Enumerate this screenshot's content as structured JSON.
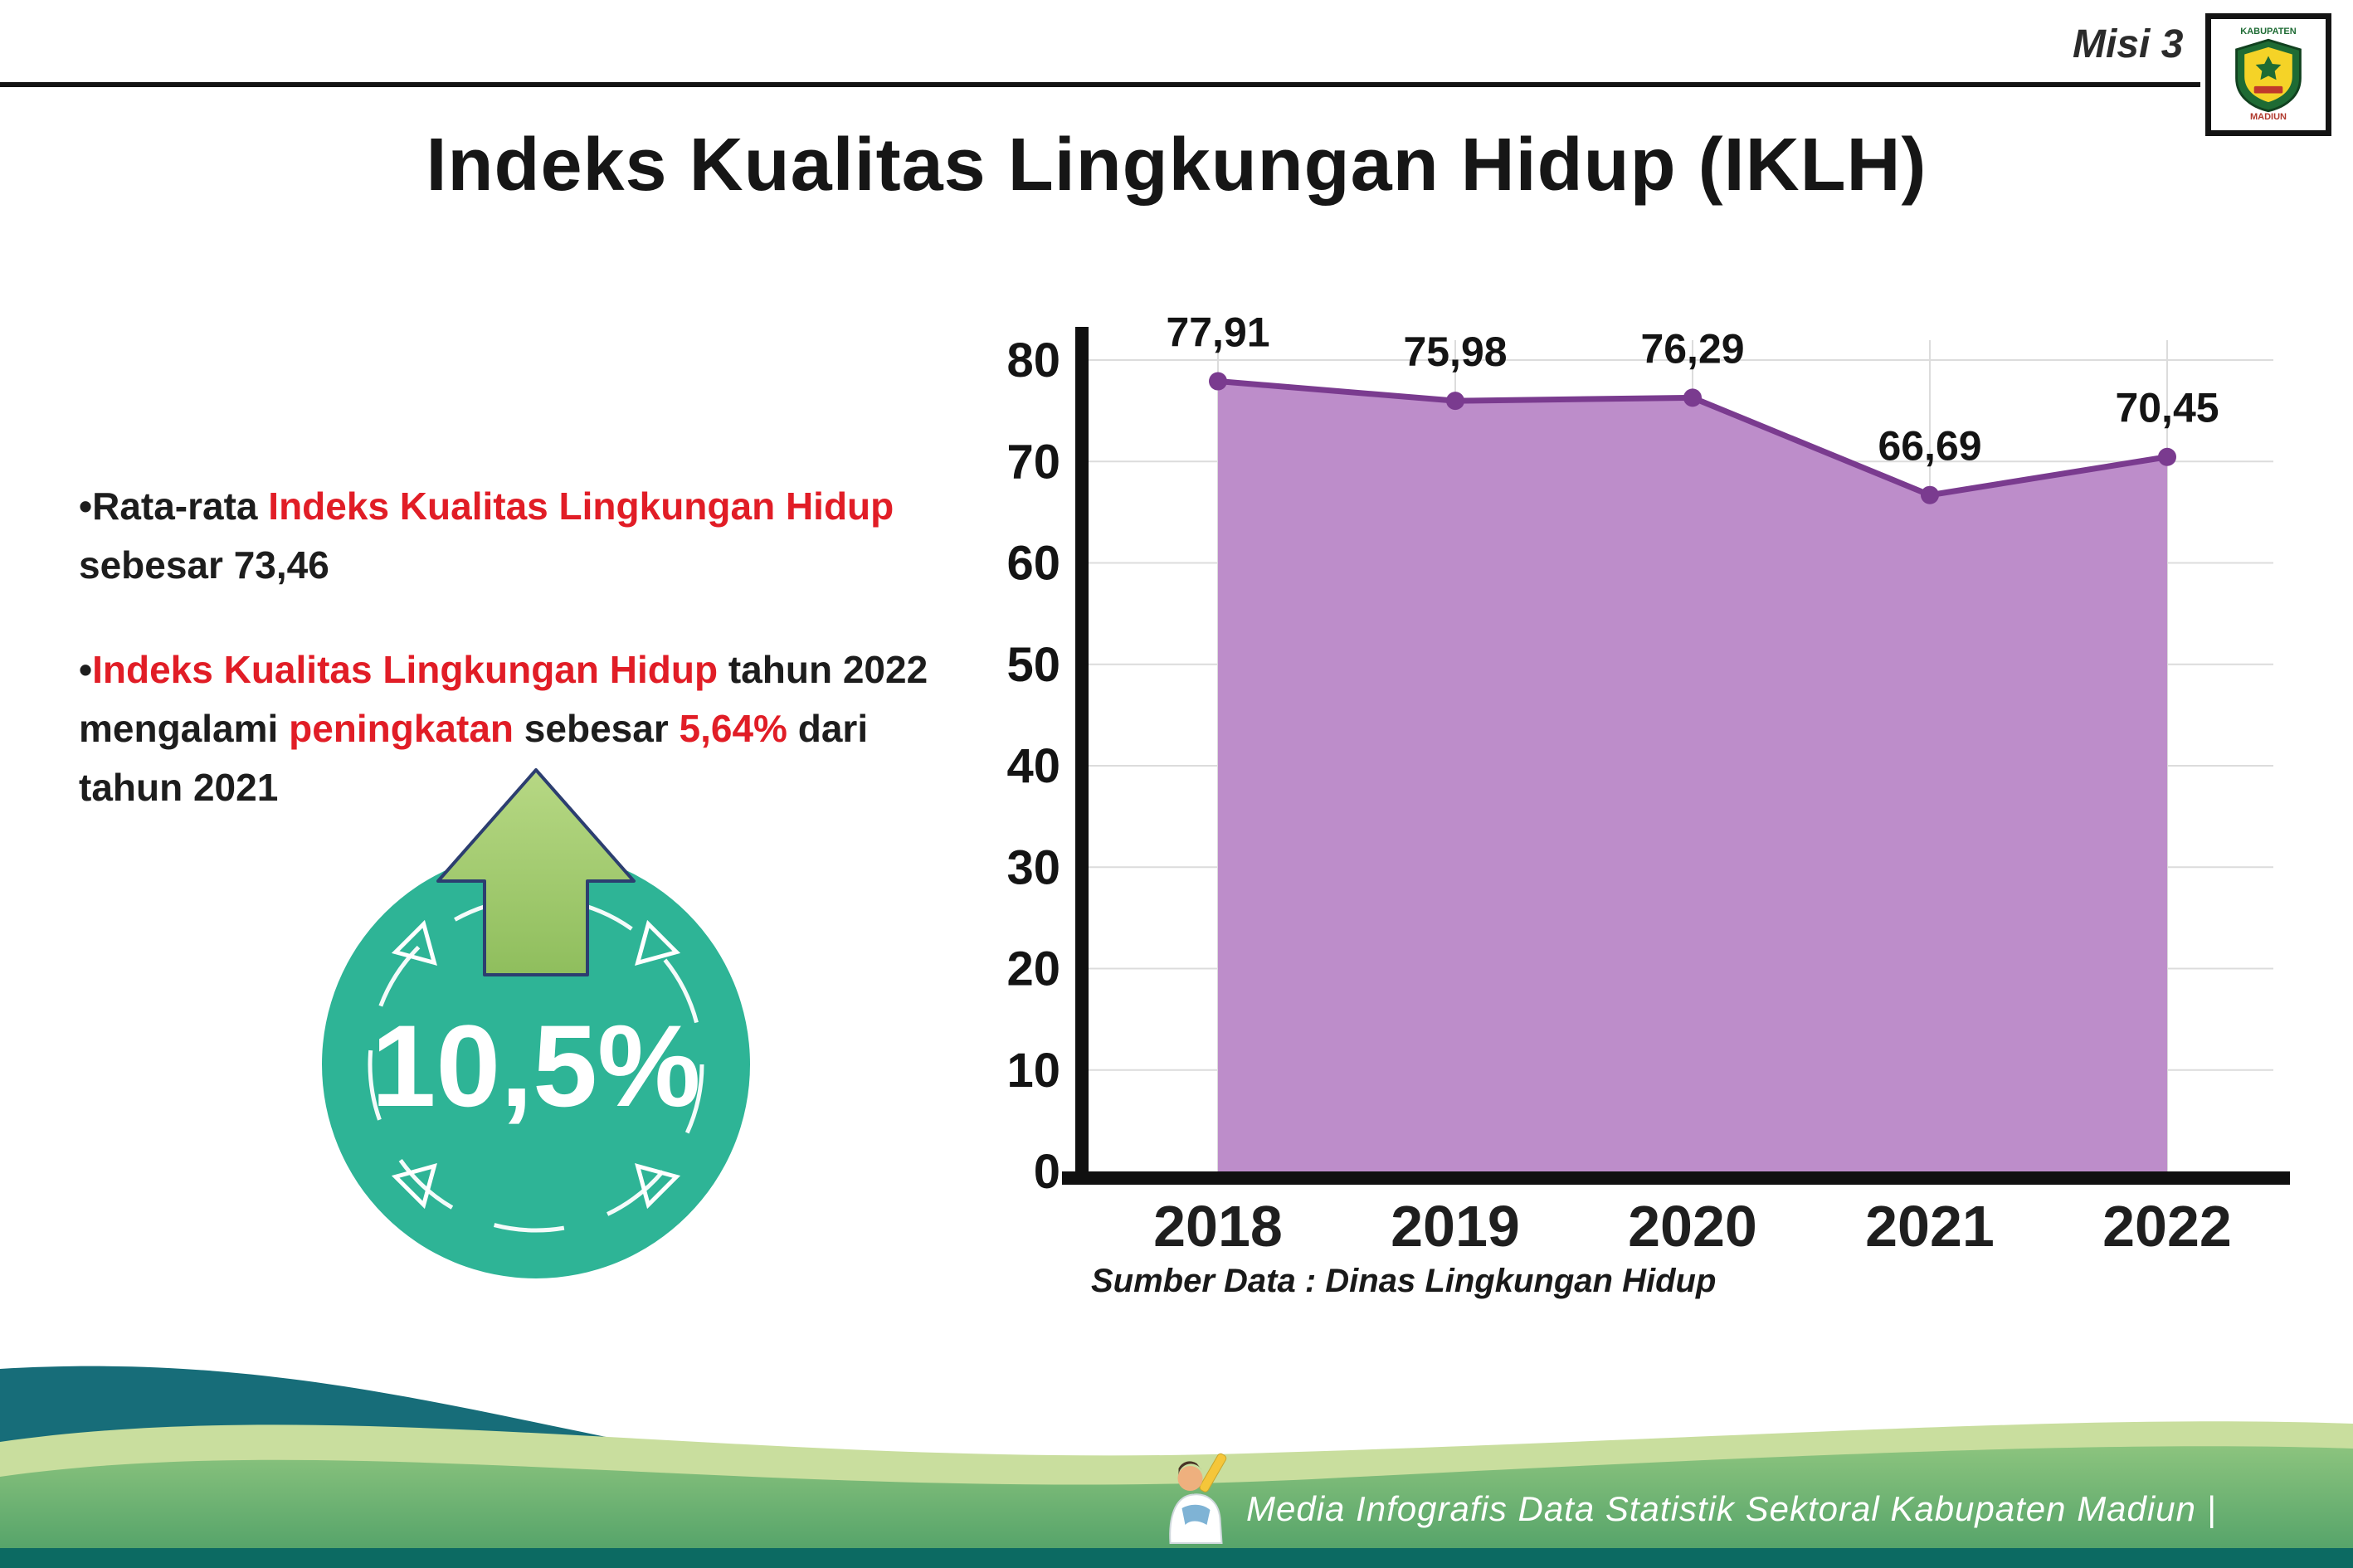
{
  "header": {
    "misi_label": "Misi 3",
    "title": "Indeks Kualitas Lingkungan Hidup (IKLH)"
  },
  "logo": {
    "top_text": "KABUPATEN",
    "bottom_text": "MADIUN"
  },
  "bullets": {
    "b1_pre": "•Rata-rata ",
    "b1_red": "Indeks Kualitas Lingkungan Hidup",
    "b1_post": " sebesar 73,46",
    "b2_bullet": "•",
    "b2_red1": "Indeks Kualitas Lingkungan Hidup",
    "b2_mid1": " tahun 2022 mengalami ",
    "b2_red2": "peningkatan",
    "b2_mid2": " sebesar ",
    "b2_red3": "5,64%",
    "b2_post": " dari tahun 2021"
  },
  "badge": {
    "value": "10,5%",
    "circle_color": "#2eb496",
    "arrow_color": "#a6ce6e",
    "arrow_outline": "#2c3e70"
  },
  "chart_data": {
    "type": "area",
    "categories": [
      "2018",
      "2019",
      "2020",
      "2021",
      "2022"
    ],
    "values": [
      77.91,
      75.98,
      76.29,
      66.69,
      70.45
    ],
    "value_labels": [
      "77,91",
      "75,98",
      "76,29",
      "66,69",
      "70,45"
    ],
    "ylim": [
      0,
      80
    ],
    "yticks": [
      0,
      10,
      20,
      30,
      40,
      50,
      60,
      70,
      80
    ],
    "grid": true,
    "legend": "none",
    "area_color": "#bd8dca",
    "line_color": "#7a3b8f",
    "source": "Sumber Data : Dinas Lingkungan Hidup"
  },
  "footer": {
    "text": "Media Infografis Data Statistik Sektoral Kabupaten Madiun |"
  }
}
